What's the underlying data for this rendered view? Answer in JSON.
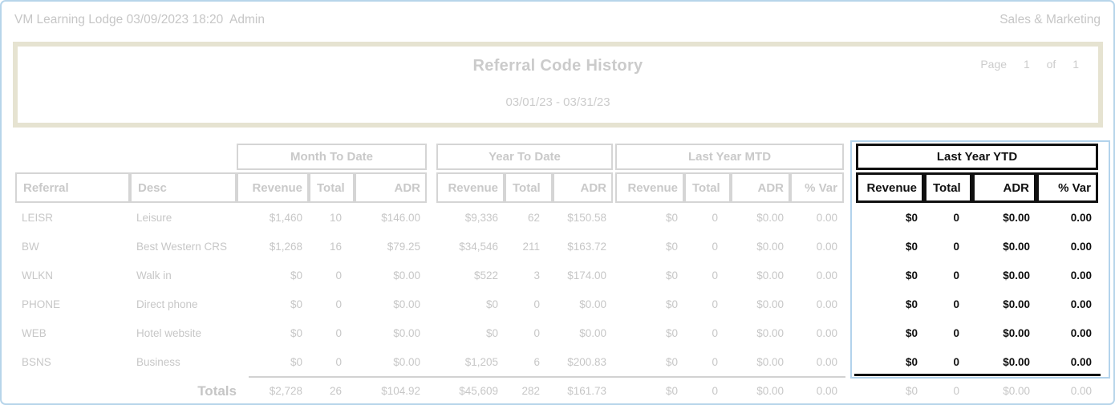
{
  "topbar": {
    "left_text": "VM Learning Lodge 03/09/2023 18:20  Admin",
    "right_text": "Sales & Marketing"
  },
  "report_header": {
    "title": "Referral Code History",
    "date_range": "03/01/23 - 03/31/23",
    "page_label": "Page",
    "page_number": "1",
    "of_label": "of",
    "page_count": "1"
  },
  "table": {
    "left_headers": {
      "referral": "Referral",
      "desc": "Desc"
    },
    "groups": {
      "mtd": {
        "label": "Month To Date",
        "columns": [
          "Revenue",
          "Total",
          "ADR"
        ]
      },
      "ytd": {
        "label": "Year To Date",
        "columns": [
          "Revenue",
          "Total",
          "ADR"
        ]
      },
      "lymtd": {
        "label": "Last Year MTD",
        "columns": [
          "Revenue",
          "Total",
          "ADR",
          "% Var"
        ]
      },
      "lyytd": {
        "label": "Last Year YTD",
        "columns": [
          "Revenue",
          "Total",
          "ADR",
          "% Var"
        ],
        "highlighted": true
      }
    },
    "rows": [
      {
        "referral": "LEISR",
        "desc": "Leisure",
        "mtd": [
          "$1,460",
          "10",
          "$146.00"
        ],
        "ytd": [
          "$9,336",
          "62",
          "$150.58"
        ],
        "lymtd": [
          "$0",
          "0",
          "$0.00",
          "0.00"
        ],
        "lyytd": [
          "$0",
          "0",
          "$0.00",
          "0.00"
        ]
      },
      {
        "referral": "BW",
        "desc": "Best Western CRS",
        "mtd": [
          "$1,268",
          "16",
          "$79.25"
        ],
        "ytd": [
          "$34,546",
          "211",
          "$163.72"
        ],
        "lymtd": [
          "$0",
          "0",
          "$0.00",
          "0.00"
        ],
        "lyytd": [
          "$0",
          "0",
          "$0.00",
          "0.00"
        ]
      },
      {
        "referral": "WLKN",
        "desc": "Walk in",
        "mtd": [
          "$0",
          "0",
          "$0.00"
        ],
        "ytd": [
          "$522",
          "3",
          "$174.00"
        ],
        "lymtd": [
          "$0",
          "0",
          "$0.00",
          "0.00"
        ],
        "lyytd": [
          "$0",
          "0",
          "$0.00",
          "0.00"
        ]
      },
      {
        "referral": "PHONE",
        "desc": "Direct phone",
        "mtd": [
          "$0",
          "0",
          "$0.00"
        ],
        "ytd": [
          "$0",
          "0",
          "$0.00"
        ],
        "lymtd": [
          "$0",
          "0",
          "$0.00",
          "0.00"
        ],
        "lyytd": [
          "$0",
          "0",
          "$0.00",
          "0.00"
        ]
      },
      {
        "referral": "WEB",
        "desc": "Hotel website",
        "mtd": [
          "$0",
          "0",
          "$0.00"
        ],
        "ytd": [
          "$0",
          "0",
          "$0.00"
        ],
        "lymtd": [
          "$0",
          "0",
          "$0.00",
          "0.00"
        ],
        "lyytd": [
          "$0",
          "0",
          "$0.00",
          "0.00"
        ]
      },
      {
        "referral": "BSNS",
        "desc": "Business",
        "mtd": [
          "$0",
          "0",
          "$0.00"
        ],
        "ytd": [
          "$1,205",
          "6",
          "$200.83"
        ],
        "lymtd": [
          "$0",
          "0",
          "$0.00",
          "0.00"
        ],
        "lyytd": [
          "$0",
          "0",
          "$0.00",
          "0.00"
        ]
      }
    ],
    "totals": {
      "label": "Totals",
      "mtd": [
        "$2,728",
        "26",
        "$104.92"
      ],
      "ytd": [
        "$45,609",
        "282",
        "$161.73"
      ],
      "lymtd": [
        "$0",
        "0",
        "$0.00",
        "0.00"
      ],
      "lyytd": [
        "$0",
        "0",
        "$0.00",
        "0.00"
      ]
    }
  },
  "colors": {
    "faded_text": "#c8c8c8",
    "faded_border": "#d5d5d5",
    "highlight_text": "#101010",
    "highlight_border": "#101010",
    "selection_blue": "#b3d3ec",
    "page_border_blue": "#b7d5ea",
    "header_box_beige": "#e6e3d1"
  }
}
